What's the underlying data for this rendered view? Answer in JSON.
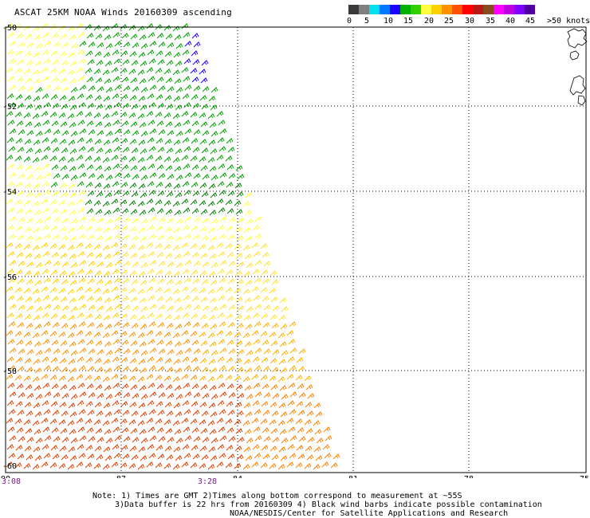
{
  "title": "ASCAT 25KM NOAA Winds 20160309 ascending",
  "colorbar": {
    "colors": [
      "#3a3a3a",
      "#808080",
      "#00e0f0",
      "#0078ff",
      "#1e00ff",
      "#00b000",
      "#30d000",
      "#ffff40",
      "#ffd000",
      "#ff9000",
      "#ff5000",
      "#ff0000",
      "#b81818",
      "#8a4a20",
      "#ff00ff",
      "#c000e0",
      "#8000ff",
      "#5000a0"
    ],
    "labels": [
      "0",
      "5",
      "10",
      "15",
      "20",
      "25",
      "30",
      "35",
      "40",
      "45",
      ">50 knots"
    ]
  },
  "map": {
    "lat_labels": [
      "-50",
      "-52",
      "-54",
      "-56",
      "-58",
      "-60"
    ],
    "lon_labels": [
      "-90",
      "-87",
      "-84",
      "-81",
      "-78",
      "-75"
    ],
    "time_labels": [
      "3:08",
      "3:28"
    ]
  },
  "notes": {
    "line1": "Note: 1) Times are GMT 2)Times along bottom correspond to measurement at ~55S",
    "line2": "3)Data buffer is 22 hrs from 20160309 4) Black wind barbs indicate possible contamination",
    "line3": "NOAA/NESDIS/Center for Satellite Applications and Research"
  }
}
